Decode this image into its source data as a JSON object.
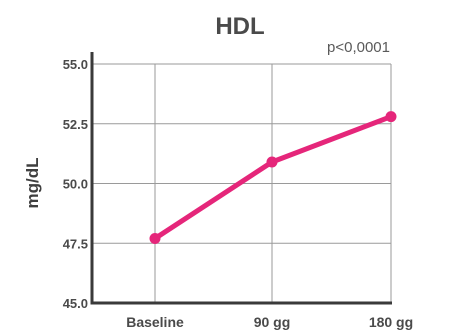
{
  "chart_data": {
    "type": "line",
    "title": "HDL",
    "annotation": "p<0,0001",
    "ylabel": "mg/dL",
    "xlabel": "",
    "categories": [
      "Baseline",
      "90 gg",
      "180 gg"
    ],
    "series": [
      {
        "values": [
          47.7,
          50.9,
          52.8
        ],
        "color": "#e5267a"
      }
    ],
    "ylim": [
      45.0,
      55.0
    ],
    "yticks": [
      "45.0",
      "47.5",
      "50.0",
      "52.5",
      "55.0"
    ],
    "grid": true
  }
}
